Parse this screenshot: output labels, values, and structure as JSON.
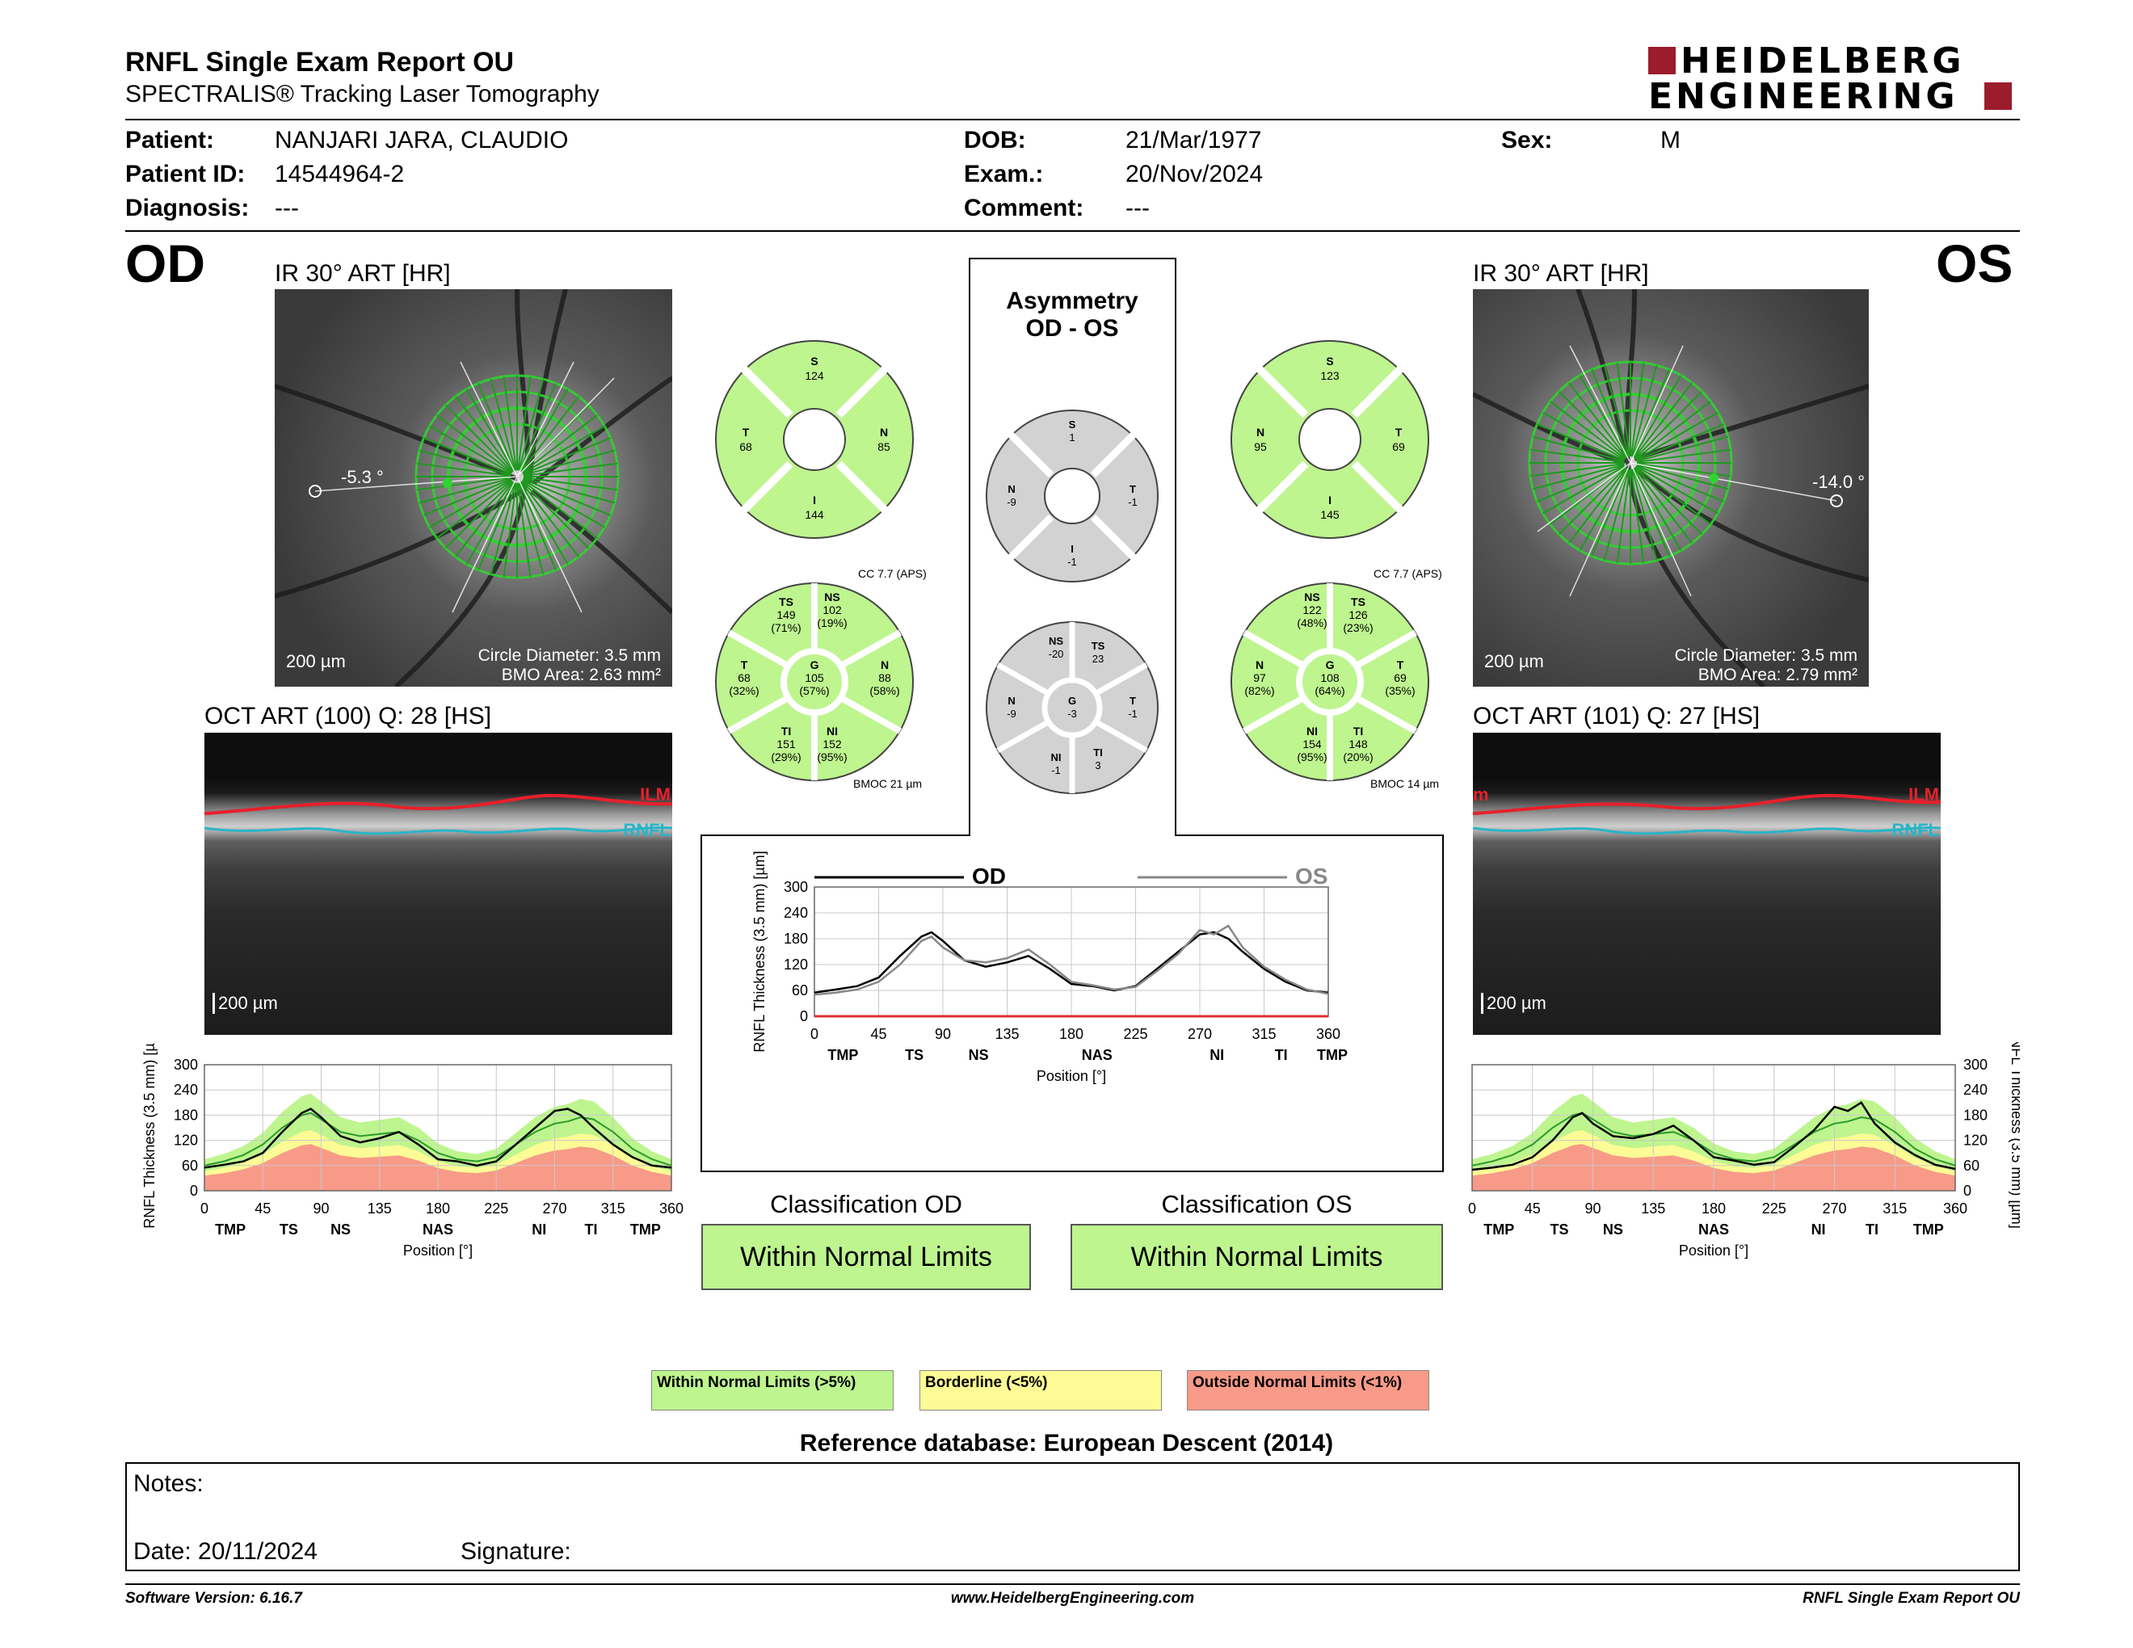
{
  "header": {
    "title": "RNFL Single Exam Report OU",
    "subtitle": "SPECTRALIS® Tracking Laser Tomography",
    "brand_line1": "HEIDELBERG",
    "brand_line2": "ENGINEERING"
  },
  "patient": {
    "patient_label": "Patient:",
    "patient_value": "NANJARI JARA, CLAUDIO",
    "id_label": "Patient ID:",
    "id_value": "14544964-2",
    "diag_label": "Diagnosis:",
    "diag_value": "---",
    "dob_label": "DOB:",
    "dob_value": "21/Mar/1977",
    "exam_label": "Exam.:",
    "exam_value": "20/Nov/2024",
    "comment_label": "Comment:",
    "comment_value": "---",
    "sex_label": "Sex:",
    "sex_value": "M"
  },
  "od": {
    "eye": "OD",
    "ir_title": "IR 30° ART [HR]",
    "angle": "-5.3 °",
    "scale": "200 µm",
    "circle_diameter": "Circle Diameter: 3.5 mm",
    "bmo_area": "BMO Area: 2.63 mm²",
    "oct_title": "OCT ART (100) Q: 28 [HS]",
    "oct_scale": "200 µm",
    "ilm": "ILM",
    "rnfl": "RNFL",
    "sectors4": {
      "S": "124",
      "T": "68",
      "N": "85",
      "I": "144"
    },
    "cc": "CC 7.7 (APS)",
    "bmoc": "BMOC 21 µm",
    "sectors6": {
      "TS": "149",
      "TS_pct": "(71%)",
      "NS": "102",
      "NS_pct": "(19%)",
      "T": "68",
      "T_pct": "(32%)",
      "G": "105",
      "G_pct": "(57%)",
      "N": "88",
      "N_pct": "(58%)",
      "TI": "151",
      "TI_pct": "(29%)",
      "NI": "152",
      "NI_pct": "(95%)"
    }
  },
  "os": {
    "eye": "OS",
    "ir_title": "IR 30° ART [HR]",
    "angle": "-14.0 °",
    "scale": "200 µm",
    "circle_diameter": "Circle Diameter: 3.5 mm",
    "bmo_area": "BMO Area: 2.79 mm²",
    "oct_title": "OCT ART (101) Q: 27 [HS]",
    "oct_scale": "200 µm",
    "ilm": "ILM",
    "ilm_left": "m",
    "rnfl": "RNFL",
    "sectors4": {
      "S": "123",
      "N": "95",
      "T": "69",
      "I": "145"
    },
    "cc": "CC 7.7 (APS)",
    "bmoc": "BMOC 14 µm",
    "sectors6": {
      "NS": "122",
      "NS_pct": "(48%)",
      "TS": "126",
      "TS_pct": "(23%)",
      "N": "97",
      "N_pct": "(82%)",
      "G": "108",
      "G_pct": "(64%)",
      "T": "69",
      "T_pct": "(35%)",
      "NI": "154",
      "NI_pct": "(95%)",
      "TI": "148",
      "TI_pct": "(20%)"
    }
  },
  "asymmetry": {
    "title1": "Asymmetry",
    "title2": "OD - OS",
    "sectors4": {
      "S": "1",
      "N": "-9",
      "T": "-1",
      "I": "-1"
    },
    "sectors6": {
      "NS": "-20",
      "TS": "23",
      "N": "-9",
      "G": "-3",
      "T": "-1",
      "NI": "-1",
      "TI": "3"
    }
  },
  "sector_letters": {
    "S": "S",
    "T": "T",
    "N": "N",
    "I": "I",
    "TS": "TS",
    "NS": "NS",
    "TI": "TI",
    "NI": "NI",
    "G": "G"
  },
  "chart_data": [
    {
      "type": "line",
      "id": "asymmetry-chart",
      "title": "",
      "legend": [
        "OD",
        "OS"
      ],
      "xlabel": "Position [°]",
      "ylabel": "RNFL Thickness (3.5 mm) [µm]",
      "xlim": [
        0,
        360
      ],
      "ylim": [
        0,
        300
      ],
      "xticks": [
        0,
        45,
        90,
        135,
        180,
        225,
        270,
        315,
        360
      ],
      "yticks": [
        0,
        60,
        120,
        180,
        240,
        300
      ],
      "sector_labels": [
        {
          "x": 20,
          "label": "TMP"
        },
        {
          "x": 70,
          "label": "TS"
        },
        {
          "x": 115,
          "label": "NS"
        },
        {
          "x": 198,
          "label": "NAS"
        },
        {
          "x": 282,
          "label": "NI"
        },
        {
          "x": 327,
          "label": "TI"
        },
        {
          "x": 375,
          "label": "TMP"
        }
      ],
      "x": [
        0,
        15,
        30,
        45,
        60,
        75,
        82,
        90,
        105,
        120,
        135,
        150,
        165,
        180,
        195,
        210,
        225,
        240,
        255,
        270,
        280,
        290,
        300,
        315,
        330,
        345,
        360
      ],
      "series": [
        {
          "name": "OD",
          "color": "#000000",
          "values": [
            55,
            62,
            70,
            90,
            140,
            185,
            195,
            175,
            130,
            115,
            125,
            140,
            110,
            75,
            70,
            60,
            70,
            110,
            150,
            190,
            195,
            180,
            150,
            110,
            80,
            60,
            55
          ]
        },
        {
          "name": "OS",
          "color": "#888888",
          "values": [
            50,
            55,
            62,
            80,
            120,
            175,
            185,
            160,
            130,
            125,
            135,
            155,
            120,
            80,
            72,
            62,
            68,
            105,
            145,
            200,
            190,
            210,
            160,
            115,
            85,
            62,
            52
          ]
        }
      ]
    },
    {
      "type": "area",
      "id": "od-profile",
      "xlabel": "Position [°]",
      "ylabel": "RNFL Thickness (3.5 mm) [µm]",
      "xlim": [
        0,
        360
      ],
      "ylim": [
        0,
        300
      ],
      "xticks": [
        0,
        45,
        90,
        135,
        180,
        225,
        270,
        315,
        360
      ],
      "yticks": [
        0,
        60,
        120,
        180,
        240,
        300
      ],
      "sector_labels": [
        {
          "x": 20,
          "label": "TMP"
        },
        {
          "x": 65,
          "label": "TS"
        },
        {
          "x": 105,
          "label": "NS"
        },
        {
          "x": 180,
          "label": "NAS"
        },
        {
          "x": 258,
          "label": "NI"
        },
        {
          "x": 298,
          "label": "TI"
        },
        {
          "x": 340,
          "label": "TMP"
        }
      ],
      "x": [
        0,
        15,
        30,
        45,
        60,
        75,
        82,
        90,
        105,
        120,
        135,
        150,
        165,
        180,
        195,
        210,
        225,
        240,
        255,
        270,
        280,
        290,
        300,
        315,
        330,
        345,
        360
      ],
      "series": [
        {
          "name": "OD",
          "color": "#000000",
          "values": [
            55,
            62,
            70,
            90,
            140,
            185,
            195,
            175,
            130,
            115,
            125,
            140,
            110,
            75,
            70,
            60,
            70,
            110,
            150,
            190,
            195,
            180,
            150,
            110,
            80,
            60,
            55
          ]
        },
        {
          "name": "normal",
          "color": "#2a9a2a",
          "values": [
            60,
            70,
            85,
            110,
            150,
            180,
            185,
            170,
            140,
            130,
            135,
            140,
            120,
            90,
            75,
            70,
            80,
            110,
            140,
            160,
            165,
            175,
            170,
            140,
            100,
            75,
            60
          ]
        }
      ]
    },
    {
      "type": "area",
      "id": "os-profile",
      "xlabel": "Position [°]",
      "ylabel": "RNFL Thickness (3.5 mm) [µm]",
      "xlim": [
        0,
        360
      ],
      "ylim": [
        0,
        300
      ],
      "xticks": [
        0,
        45,
        90,
        135,
        180,
        225,
        270,
        315,
        360
      ],
      "yticks": [
        0,
        60,
        120,
        180,
        240,
        300
      ],
      "sector_labels": [
        {
          "x": 20,
          "label": "TMP"
        },
        {
          "x": 65,
          "label": "TS"
        },
        {
          "x": 105,
          "label": "NS"
        },
        {
          "x": 180,
          "label": "NAS"
        },
        {
          "x": 258,
          "label": "NI"
        },
        {
          "x": 298,
          "label": "TI"
        },
        {
          "x": 340,
          "label": "TMP"
        }
      ],
      "x": [
        0,
        15,
        30,
        45,
        60,
        75,
        82,
        90,
        105,
        120,
        135,
        150,
        165,
        180,
        195,
        210,
        225,
        240,
        255,
        270,
        280,
        290,
        300,
        315,
        330,
        345,
        360
      ],
      "series": [
        {
          "name": "OS",
          "color": "#000000",
          "values": [
            50,
            55,
            62,
            80,
            120,
            175,
            185,
            160,
            130,
            125,
            135,
            155,
            120,
            80,
            72,
            62,
            68,
            105,
            145,
            200,
            190,
            210,
            160,
            115,
            85,
            62,
            52
          ]
        },
        {
          "name": "normal",
          "color": "#2a9a2a",
          "values": [
            60,
            70,
            85,
            110,
            150,
            180,
            185,
            170,
            140,
            130,
            135,
            140,
            120,
            90,
            75,
            70,
            80,
            110,
            140,
            160,
            165,
            175,
            170,
            140,
            100,
            75,
            60
          ]
        }
      ]
    }
  ],
  "classification": {
    "od_title": "Classification OD",
    "od_value": "Within Normal Limits",
    "os_title": "Classification OS",
    "os_value": "Within Normal Limits"
  },
  "legend": {
    "wnl": "Within Normal Limits (>5%)",
    "wnl_color": "#bef58f",
    "border": "Borderline (<5%)",
    "border_color": "#fdfb95",
    "onl": "Outside Normal Limits (<1%)",
    "onl_color": "#f89a88"
  },
  "reference": "Reference database: European Descent (2014)",
  "notes": {
    "label": "Notes:",
    "date": "Date: 20/11/2024",
    "signature": "Signature:"
  },
  "footer": {
    "version": "Software Version: 6.16.7",
    "url": "www.HeidelbergEngineering.com",
    "report": "RNFL Single Exam Report OU"
  }
}
